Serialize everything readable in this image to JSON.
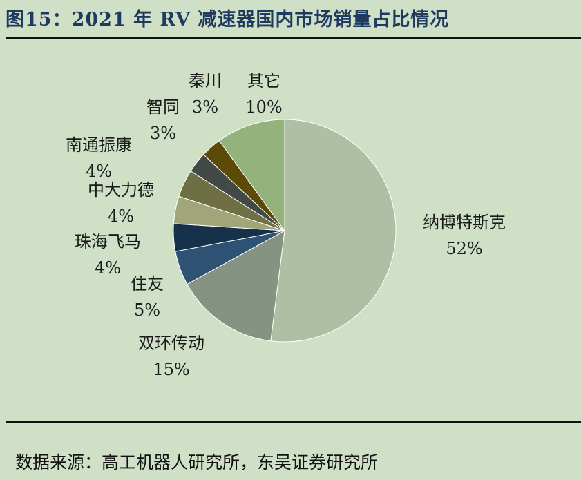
{
  "title": "图15：2021 年 RV 减速器国内市场销量占比情况",
  "source": "数据来源：高工机器人研究所，东吴证券研究所",
  "chart_data": {
    "type": "pie",
    "title": "",
    "slices": [
      {
        "label": "纳博特斯克",
        "value": 52,
        "value_label": "52%",
        "color": "#b0bea3"
      },
      {
        "label": "双环传动",
        "value": 15,
        "value_label": "15%",
        "color": "#879382"
      },
      {
        "label": "住友",
        "value": 5,
        "value_label": "5%",
        "color": "#2d5273"
      },
      {
        "label": "珠海飞马",
        "value": 4,
        "value_label": "4%",
        "color": "#16324a"
      },
      {
        "label": "中大力德",
        "value": 4,
        "value_label": "4%",
        "color": "#a1a67a"
      },
      {
        "label": "南通振康",
        "value": 4,
        "value_label": "4%",
        "color": "#6f6f45"
      },
      {
        "label": "智同",
        "value": 3,
        "value_label": "3%",
        "color": "#434a45"
      },
      {
        "label": "秦川",
        "value": 3,
        "value_label": "3%",
        "color": "#5b4a08"
      },
      {
        "label": "其它",
        "value": 10,
        "value_label": "10%",
        "color": "#94b27c"
      }
    ],
    "start": "12 o'clock",
    "direction": "clockwise",
    "legend": "none",
    "label_placement": "outside"
  }
}
